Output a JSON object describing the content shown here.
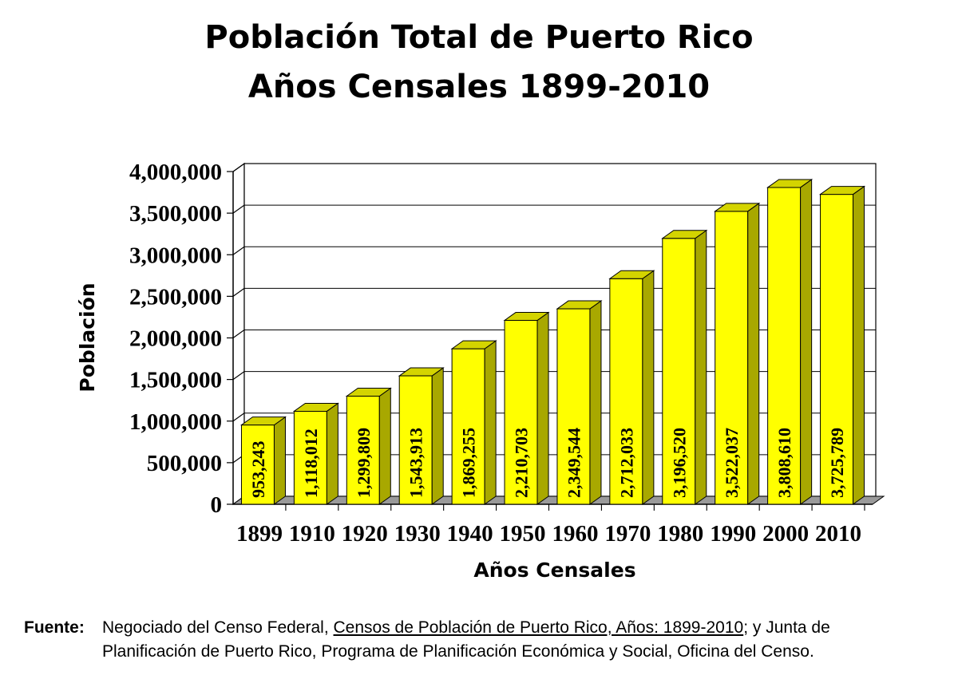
{
  "chart_data": {
    "type": "bar",
    "title": "Población Total de Puerto Rico",
    "subtitle": "Años Censales 1899-2010",
    "xlabel": "Años Censales",
    "ylabel": "Población",
    "categories": [
      "1899",
      "1910",
      "1920",
      "1930",
      "1940",
      "1950",
      "1960",
      "1970",
      "1980",
      "1990",
      "2000",
      "2010"
    ],
    "values": [
      953243,
      1118012,
      1299809,
      1543913,
      1869255,
      2210703,
      2349544,
      2712033,
      3196520,
      3522037,
      3808610,
      3725789
    ],
    "value_labels": [
      "953,243",
      "1,118,012",
      "1,299,809",
      "1,543,913",
      "1,869,255",
      "2,210,703",
      "2,349,544",
      "2,712,033",
      "3,196,520",
      "3,522,037",
      "3,808,610",
      "3,725,789"
    ],
    "ylim": [
      0,
      4000000
    ],
    "yticks": [
      0,
      500000,
      1000000,
      1500000,
      2000000,
      2500000,
      3000000,
      3500000,
      4000000
    ],
    "ytick_labels": [
      "0",
      "500,000",
      "1,000,000",
      "1,500,000",
      "2,000,000",
      "2,500,000",
      "3,000,000",
      "3,500,000",
      "4,000,000"
    ],
    "grid": true,
    "legend": "none",
    "bar_color": "#ffff00",
    "bar_side_color": "#a8a800",
    "bar_top_color": "#d4d400"
  },
  "source": {
    "label": "Fuente:",
    "text_pre": "Negociado del Censo Federal, ",
    "text_title": "Censos de Población de Puerto Rico, Años: 1899-2010",
    "text_post": "; y Junta de",
    "line2": "Planificación de Puerto Rico, Programa de Planificación Económica y Social, Oficina del Censo."
  }
}
